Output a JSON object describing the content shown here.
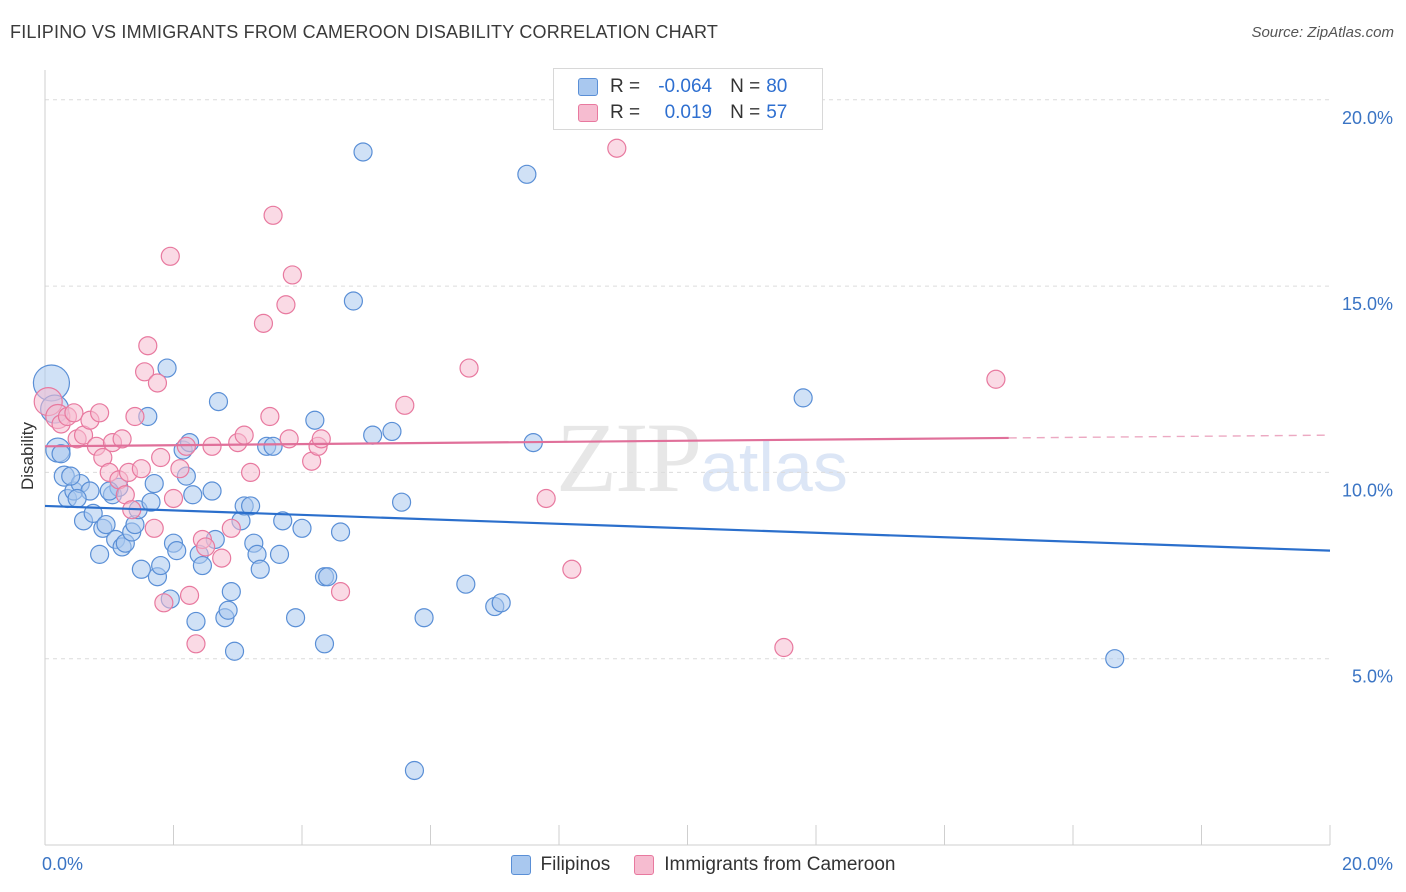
{
  "header": {
    "title": "FILIPINO VS IMMIGRANTS FROM CAMEROON DISABILITY CORRELATION CHART",
    "source": "Source: ZipAtlas.com"
  },
  "legend_top": {
    "rows": [
      {
        "r_label": "R =",
        "r_value": "-0.064",
        "n_label": "N =",
        "n_value": "80"
      },
      {
        "r_label": "R =",
        "r_value": "0.019",
        "n_label": "N =",
        "n_value": "57"
      }
    ]
  },
  "legend_bottom": {
    "items": [
      {
        "label": "Filipinos"
      },
      {
        "label": "Immigrants from Cameroon"
      }
    ]
  },
  "watermark": {
    "zip": "ZIP",
    "atlas": "atlas"
  },
  "colors": {
    "blue_fill": "#a9c8ef",
    "blue_stroke": "#5a8fd6",
    "blue_line": "#2b6fcc",
    "pink_fill": "#f6bcd0",
    "pink_stroke": "#e8799f",
    "pink_line": "#e0709a",
    "tick_text": "#3a74c4",
    "grid": "#dcdcdc"
  },
  "chart_data": {
    "type": "scatter",
    "title": "FILIPINO VS IMMIGRANTS FROM CAMEROON DISABILITY CORRELATION CHART",
    "xlabel": "",
    "ylabel": "Disability",
    "xlim": [
      0,
      20
    ],
    "ylim": [
      0,
      20.8
    ],
    "x_tick_labels": [
      {
        "value": 0,
        "label": "0.0%"
      },
      {
        "value": 20,
        "label": "20.0%"
      }
    ],
    "y_tick_labels": [
      {
        "value": 5,
        "label": "5.0%"
      },
      {
        "value": 10,
        "label": "10.0%"
      },
      {
        "value": 15,
        "label": "15.0%"
      },
      {
        "value": 20,
        "label": "20.0%"
      }
    ],
    "grid": true,
    "legend_position": "top-center",
    "series": [
      {
        "name": "Filipinos",
        "color": "#5a8fd6",
        "trend": {
          "x": [
            0,
            20
          ],
          "y": [
            9.1,
            7.9
          ],
          "dashed_from": null
        },
        "points": [
          [
            0.1,
            12.4,
            18
          ],
          [
            0.15,
            11.7,
            14
          ],
          [
            0.2,
            10.6,
            12
          ],
          [
            0.3,
            9.9,
            10
          ],
          [
            0.35,
            9.3,
            9
          ],
          [
            0.45,
            9.5,
            9
          ],
          [
            0.55,
            9.7,
            9
          ],
          [
            0.6,
            8.7,
            9
          ],
          [
            0.7,
            9.5,
            9
          ],
          [
            0.75,
            8.9,
            9
          ],
          [
            0.85,
            7.8,
            9
          ],
          [
            0.9,
            8.5,
            9
          ],
          [
            0.95,
            8.6,
            9
          ],
          [
            1.05,
            9.4,
            9
          ],
          [
            1.1,
            8.2,
            9
          ],
          [
            1.15,
            9.6,
            9
          ],
          [
            1.2,
            8.0,
            9
          ],
          [
            1.25,
            8.1,
            9
          ],
          [
            1.35,
            8.4,
            9
          ],
          [
            1.4,
            8.6,
            9
          ],
          [
            1.45,
            9.0,
            9
          ],
          [
            1.5,
            7.4,
            9
          ],
          [
            1.6,
            11.5,
            9
          ],
          [
            1.65,
            9.2,
            9
          ],
          [
            1.7,
            9.7,
            9
          ],
          [
            1.75,
            7.2,
            9
          ],
          [
            1.8,
            7.5,
            9
          ],
          [
            1.9,
            12.8,
            9
          ],
          [
            1.95,
            6.6,
            9
          ],
          [
            2.0,
            8.1,
            9
          ],
          [
            2.05,
            7.9,
            9
          ],
          [
            2.15,
            10.6,
            9
          ],
          [
            2.2,
            9.9,
            9
          ],
          [
            2.25,
            10.8,
            9
          ],
          [
            2.3,
            9.4,
            9
          ],
          [
            2.35,
            6.0,
            9
          ],
          [
            2.4,
            7.8,
            9
          ],
          [
            2.45,
            7.5,
            9
          ],
          [
            2.6,
            9.5,
            9
          ],
          [
            2.65,
            8.2,
            9
          ],
          [
            2.7,
            11.9,
            9
          ],
          [
            2.8,
            6.1,
            9
          ],
          [
            2.85,
            6.3,
            9
          ],
          [
            2.9,
            6.8,
            9
          ],
          [
            2.95,
            5.2,
            9
          ],
          [
            3.05,
            8.7,
            9
          ],
          [
            3.1,
            9.1,
            9
          ],
          [
            3.2,
            9.1,
            9
          ],
          [
            3.25,
            8.1,
            9
          ],
          [
            3.3,
            7.8,
            9
          ],
          [
            3.35,
            7.4,
            9
          ],
          [
            3.45,
            10.7,
            9
          ],
          [
            3.55,
            10.7,
            9
          ],
          [
            3.65,
            7.8,
            9
          ],
          [
            3.7,
            8.7,
            9
          ],
          [
            3.9,
            6.1,
            9
          ],
          [
            4.0,
            8.5,
            9
          ],
          [
            4.2,
            11.4,
            9
          ],
          [
            4.35,
            7.2,
            9
          ],
          [
            4.35,
            5.4,
            9
          ],
          [
            4.4,
            7.2,
            9
          ],
          [
            4.6,
            8.4,
            9
          ],
          [
            4.8,
            14.6,
            9
          ],
          [
            4.95,
            18.6,
            9
          ],
          [
            5.1,
            11.0,
            9
          ],
          [
            5.4,
            11.1,
            9
          ],
          [
            5.55,
            9.2,
            9
          ],
          [
            5.75,
            2.0,
            9
          ],
          [
            5.9,
            6.1,
            9
          ],
          [
            6.55,
            7.0,
            9
          ],
          [
            7.0,
            6.4,
            9
          ],
          [
            7.1,
            6.5,
            9
          ],
          [
            7.5,
            18.0,
            9
          ],
          [
            7.6,
            10.8,
            9
          ],
          [
            11.8,
            12.0,
            9
          ],
          [
            16.65,
            5.0,
            9
          ],
          [
            0.25,
            10.5,
            9
          ],
          [
            0.5,
            9.3,
            9
          ],
          [
            1.0,
            9.5,
            9
          ],
          [
            0.4,
            9.9,
            9
          ]
        ]
      },
      {
        "name": "Immigrants from Cameroon",
        "color": "#e8799f",
        "trend": {
          "x": [
            0,
            20
          ],
          "y": [
            10.7,
            11.0
          ],
          "dashed_from": 15.0
        },
        "points": [
          [
            0.05,
            11.9,
            14
          ],
          [
            0.2,
            11.5,
            12
          ],
          [
            0.25,
            11.3,
            9
          ],
          [
            0.35,
            11.5,
            9
          ],
          [
            0.45,
            11.6,
            9
          ],
          [
            0.5,
            10.9,
            9
          ],
          [
            0.6,
            11.0,
            9
          ],
          [
            0.7,
            11.4,
            9
          ],
          [
            0.8,
            10.7,
            9
          ],
          [
            0.85,
            11.6,
            9
          ],
          [
            0.9,
            10.4,
            9
          ],
          [
            1.0,
            10.0,
            9
          ],
          [
            1.05,
            10.8,
            9
          ],
          [
            1.15,
            9.8,
            9
          ],
          [
            1.2,
            10.9,
            9
          ],
          [
            1.25,
            9.4,
            9
          ],
          [
            1.3,
            10.0,
            9
          ],
          [
            1.4,
            11.5,
            9
          ],
          [
            1.5,
            10.1,
            9
          ],
          [
            1.55,
            12.7,
            9
          ],
          [
            1.6,
            13.4,
            9
          ],
          [
            1.7,
            8.5,
            9
          ],
          [
            1.75,
            12.4,
            9
          ],
          [
            1.8,
            10.4,
            9
          ],
          [
            1.85,
            6.5,
            9
          ],
          [
            1.95,
            15.8,
            9
          ],
          [
            2.0,
            9.3,
            9
          ],
          [
            2.1,
            10.1,
            9
          ],
          [
            2.2,
            10.7,
            9
          ],
          [
            2.25,
            6.7,
            9
          ],
          [
            2.35,
            5.4,
            9
          ],
          [
            2.45,
            8.2,
            9
          ],
          [
            2.5,
            8.0,
            9
          ],
          [
            2.6,
            10.7,
            9
          ],
          [
            2.75,
            7.7,
            9
          ],
          [
            2.9,
            8.5,
            9
          ],
          [
            3.0,
            10.8,
            9
          ],
          [
            3.1,
            11.0,
            9
          ],
          [
            3.2,
            10.0,
            9
          ],
          [
            3.4,
            14.0,
            9
          ],
          [
            3.5,
            11.5,
            9
          ],
          [
            3.55,
            16.9,
            9
          ],
          [
            3.75,
            14.5,
            9
          ],
          [
            3.8,
            10.9,
            9
          ],
          [
            3.85,
            15.3,
            9
          ],
          [
            4.15,
            10.3,
            9
          ],
          [
            4.25,
            10.7,
            9
          ],
          [
            4.3,
            10.9,
            9
          ],
          [
            4.6,
            6.8,
            9
          ],
          [
            5.6,
            11.8,
            9
          ],
          [
            6.6,
            12.8,
            9
          ],
          [
            7.8,
            9.3,
            9
          ],
          [
            8.2,
            7.4,
            9
          ],
          [
            8.9,
            18.7,
            9
          ],
          [
            11.5,
            5.3,
            9
          ],
          [
            14.8,
            12.5,
            9
          ],
          [
            1.35,
            9.0,
            9
          ]
        ]
      }
    ]
  }
}
